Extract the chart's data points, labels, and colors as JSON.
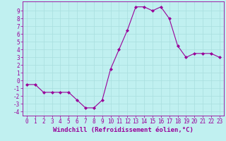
{
  "x": [
    0,
    1,
    2,
    3,
    4,
    5,
    6,
    7,
    8,
    9,
    10,
    11,
    12,
    13,
    14,
    15,
    16,
    17,
    18,
    19,
    20,
    21,
    22,
    23
  ],
  "y": [
    -0.5,
    -0.5,
    -1.5,
    -1.5,
    -1.5,
    -1.5,
    -2.5,
    -3.5,
    -3.5,
    -2.5,
    1.5,
    4.0,
    6.5,
    9.5,
    9.5,
    9.0,
    9.5,
    8.0,
    4.5,
    3.0,
    3.5,
    3.5,
    3.5,
    3.0
  ],
  "line_color": "#990099",
  "marker": "D",
  "markersize": 2,
  "bg_color": "#c0f0f0",
  "grid_color": "#a8dede",
  "xlabel": "Windchill (Refroidissement éolien,°C)",
  "xlim": [
    -0.5,
    23.5
  ],
  "ylim": [
    -4.5,
    10.2
  ],
  "yticks": [
    -4,
    -3,
    -2,
    -1,
    0,
    1,
    2,
    3,
    4,
    5,
    6,
    7,
    8,
    9
  ],
  "xticks": [
    0,
    1,
    2,
    3,
    4,
    5,
    6,
    7,
    8,
    9,
    10,
    11,
    12,
    13,
    14,
    15,
    16,
    17,
    18,
    19,
    20,
    21,
    22,
    23
  ],
  "tick_color": "#990099",
  "label_color": "#990099",
  "spine_color": "#990099",
  "xlabel_fontsize": 6.5,
  "tick_fontsize": 5.5
}
